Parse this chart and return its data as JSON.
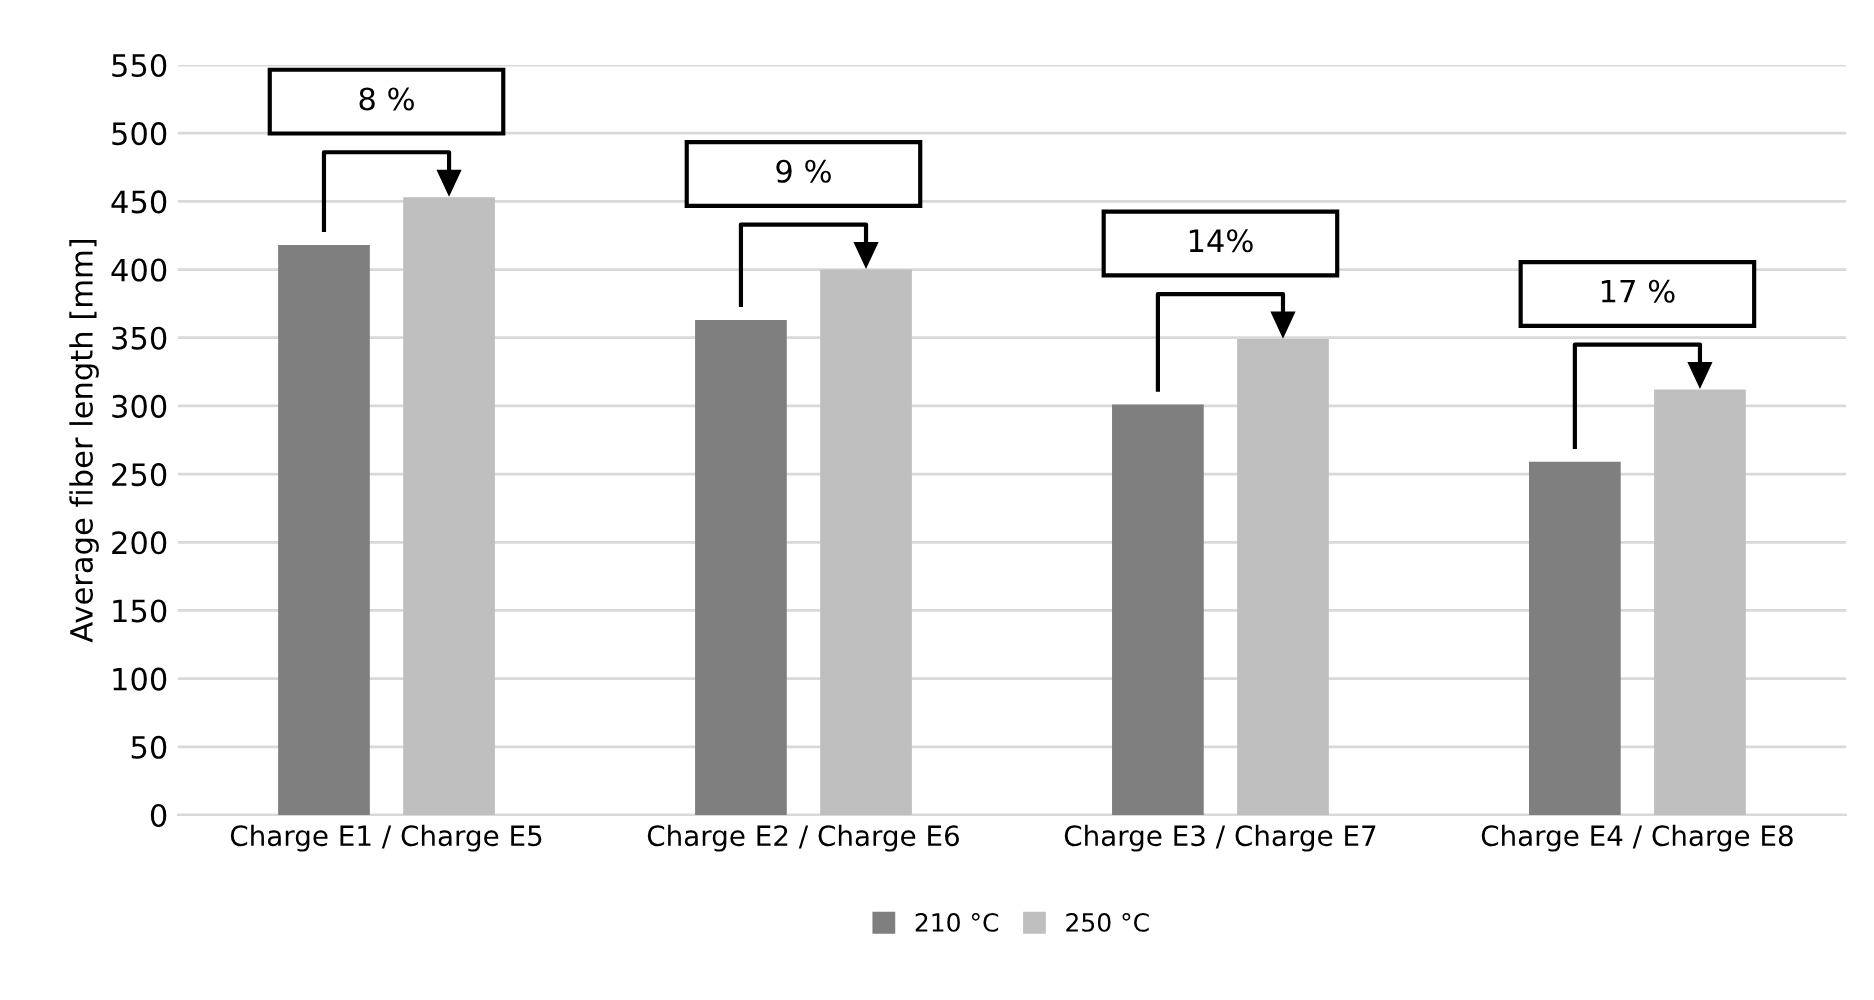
{
  "chart_data": {
    "type": "bar",
    "ylabel": "Average fiber length [mm]",
    "categories": [
      "Charge E1 / Charge E5",
      "Charge E2 / Charge E6",
      "Charge E3 / Charge E7",
      "Charge E4 / Charge E8"
    ],
    "series": [
      {
        "name": "210 °C",
        "color": "#7f7f7f",
        "values": [
          418,
          363,
          301,
          259
        ]
      },
      {
        "name": "250 °C",
        "color": "#bfbfbf",
        "values": [
          453,
          400,
          349,
          312
        ]
      }
    ],
    "ylim": [
      0,
      550
    ],
    "yticks": [
      0,
      50,
      100,
      150,
      200,
      250,
      300,
      350,
      400,
      450,
      500,
      550
    ],
    "grid": "y",
    "legend": "bottom",
    "annotations": [
      "8 %",
      "9 %",
      "14%",
      "17 %"
    ]
  }
}
